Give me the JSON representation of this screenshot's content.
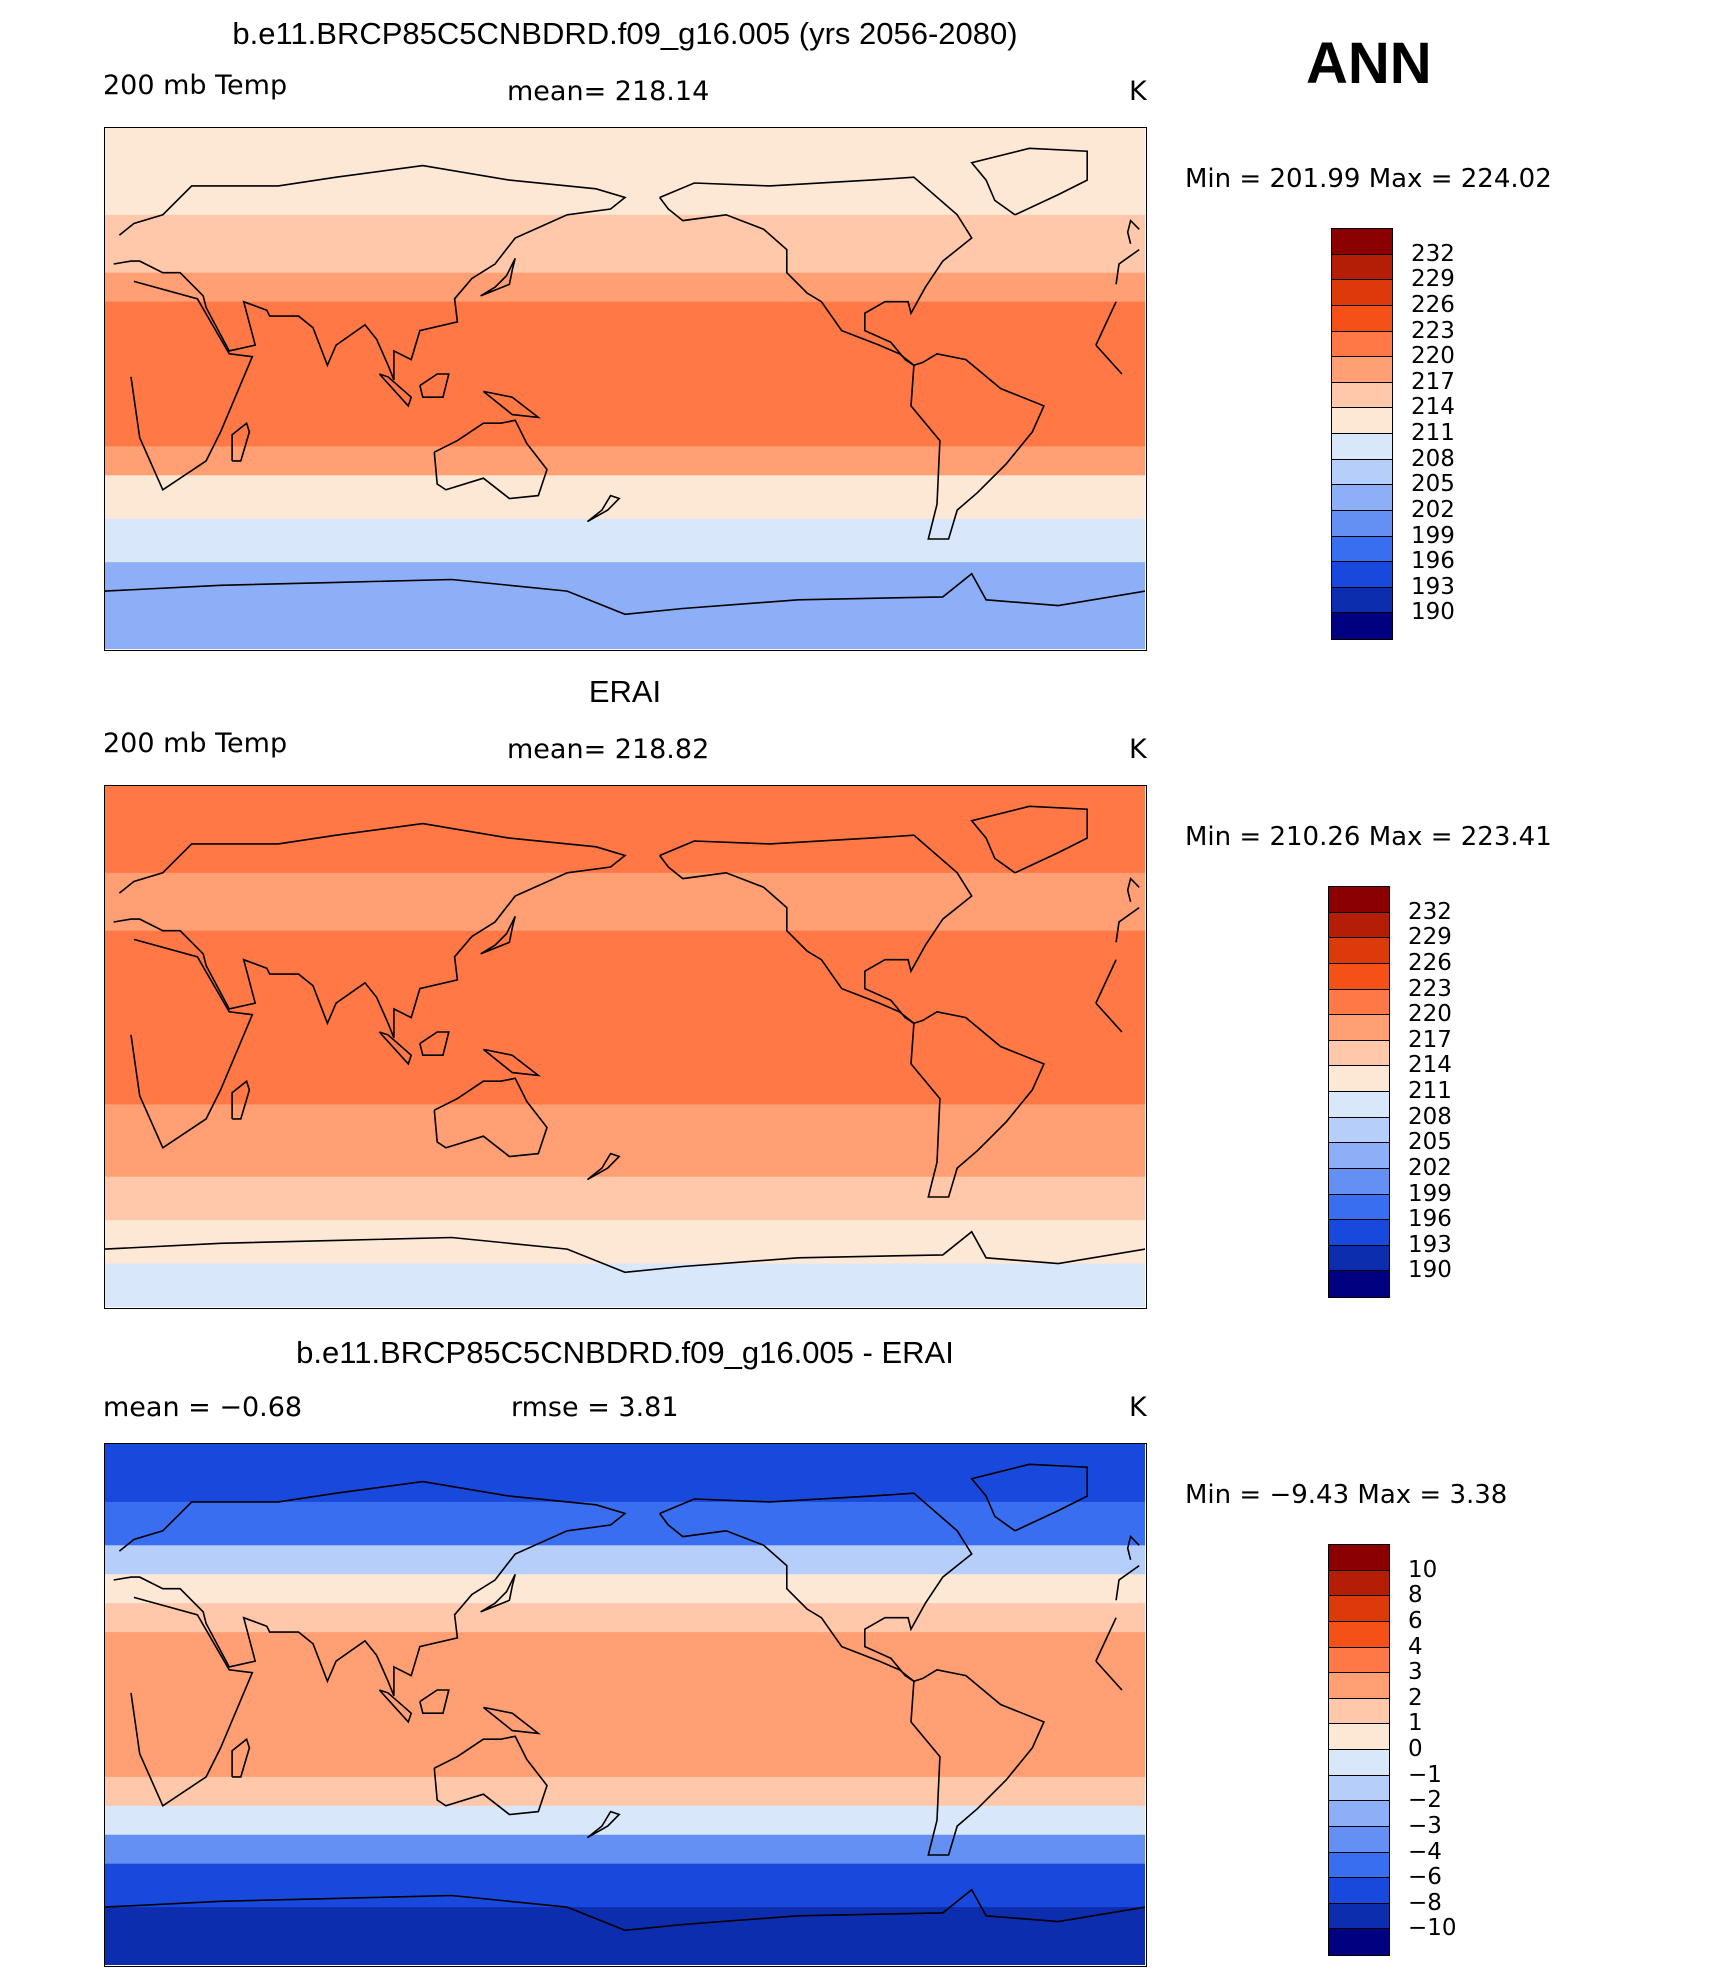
{
  "season": "ANN",
  "colors": {
    "abs_scale": [
      "#8b0000",
      "#b41e06",
      "#dc3a0a",
      "#f55018",
      "#ff7846",
      "#ff9f73",
      "#ffc8aa",
      "#fde8d6",
      "#d8e8fa",
      "#b6cefa",
      "#8caff7",
      "#6390f2",
      "#3a6ef0",
      "#1848dc",
      "#0c2dae",
      "#000080"
    ],
    "diff_scale": [
      "#8b0000",
      "#b41e06",
      "#dc3a0a",
      "#f55018",
      "#ff7846",
      "#ff9f73",
      "#ffc8aa",
      "#fde8d6",
      "#d8e8fa",
      "#b6cefa",
      "#8caff7",
      "#6390f2",
      "#3a6ef0",
      "#1848dc",
      "#0c2dae",
      "#000080"
    ],
    "land_outline": "#000000"
  },
  "chart_data": [
    {
      "type": "heatmap",
      "title": "b.e11.BRCP85C5CNBDRD.f09_g16.005 (yrs 2056-2080)",
      "left_label": "200 mb Temp",
      "center_label": "mean=  218.14",
      "units": "K",
      "min_max": "Min  =  201.99  Max  =  224.02",
      "colorbar_levels": [
        "232",
        "229",
        "226",
        "223",
        "220",
        "217",
        "214",
        "211",
        "208",
        "205",
        "202",
        "199",
        "196",
        "193",
        "190"
      ],
      "bands_by_latitude": [
        {
          "lat": [
            90,
            60
          ],
          "level_index": 7
        },
        {
          "lat": [
            60,
            40
          ],
          "level_index": 6
        },
        {
          "lat": [
            40,
            30
          ],
          "level_index": 5
        },
        {
          "lat": [
            30,
            -20
          ],
          "level_index": 4
        },
        {
          "lat": [
            -20,
            -30
          ],
          "level_index": 5
        },
        {
          "lat": [
            -30,
            -45
          ],
          "level_index": 7
        },
        {
          "lat": [
            -45,
            -60
          ],
          "level_index": 8
        },
        {
          "lat": [
            -60,
            -90
          ],
          "level_index": 10
        }
      ]
    },
    {
      "type": "heatmap",
      "title": "ERAI",
      "left_label": "200 mb Temp",
      "center_label": "mean=  218.82",
      "units": "K",
      "min_max": "Min  =  210.26  Max  =  223.41",
      "colorbar_levels": [
        "232",
        "229",
        "226",
        "223",
        "220",
        "217",
        "214",
        "211",
        "208",
        "205",
        "202",
        "199",
        "196",
        "193",
        "190"
      ],
      "bands_by_latitude": [
        {
          "lat": [
            90,
            60
          ],
          "level_index": 4
        },
        {
          "lat": [
            60,
            40
          ],
          "level_index": 5
        },
        {
          "lat": [
            40,
            -20
          ],
          "level_index": 4
        },
        {
          "lat": [
            -20,
            -45
          ],
          "level_index": 5
        },
        {
          "lat": [
            -45,
            -60
          ],
          "level_index": 6
        },
        {
          "lat": [
            -60,
            -75
          ],
          "level_index": 7
        },
        {
          "lat": [
            -75,
            -90
          ],
          "level_index": 8
        }
      ]
    },
    {
      "type": "heatmap",
      "title": "b.e11.BRCP85C5CNBDRD.f09_g16.005 - ERAI",
      "left_label": "mean =    −0.68",
      "center_label": "rmse =      3.81",
      "units": "K",
      "min_max": "Min  =     −9.43  Max  =       3.38",
      "colorbar_levels": [
        "10",
        "8",
        "6",
        "4",
        "3",
        "2",
        "1",
        "0",
        "−1",
        "−2",
        "−3",
        "−4",
        "−6",
        "−8",
        "−10"
      ],
      "bands_by_latitude": [
        {
          "lat": [
            90,
            70
          ],
          "level_index": 13
        },
        {
          "lat": [
            70,
            55
          ],
          "level_index": 12
        },
        {
          "lat": [
            55,
            45
          ],
          "level_index": 9
        },
        {
          "lat": [
            45,
            35
          ],
          "level_index": 7
        },
        {
          "lat": [
            35,
            25
          ],
          "level_index": 6
        },
        {
          "lat": [
            25,
            -25
          ],
          "level_index": 5
        },
        {
          "lat": [
            -25,
            -35
          ],
          "level_index": 6
        },
        {
          "lat": [
            -35,
            -45
          ],
          "level_index": 8
        },
        {
          "lat": [
            -45,
            -55
          ],
          "level_index": 11
        },
        {
          "lat": [
            -55,
            -70
          ],
          "level_index": 13
        },
        {
          "lat": [
            -70,
            -90
          ],
          "level_index": 14
        }
      ]
    }
  ]
}
